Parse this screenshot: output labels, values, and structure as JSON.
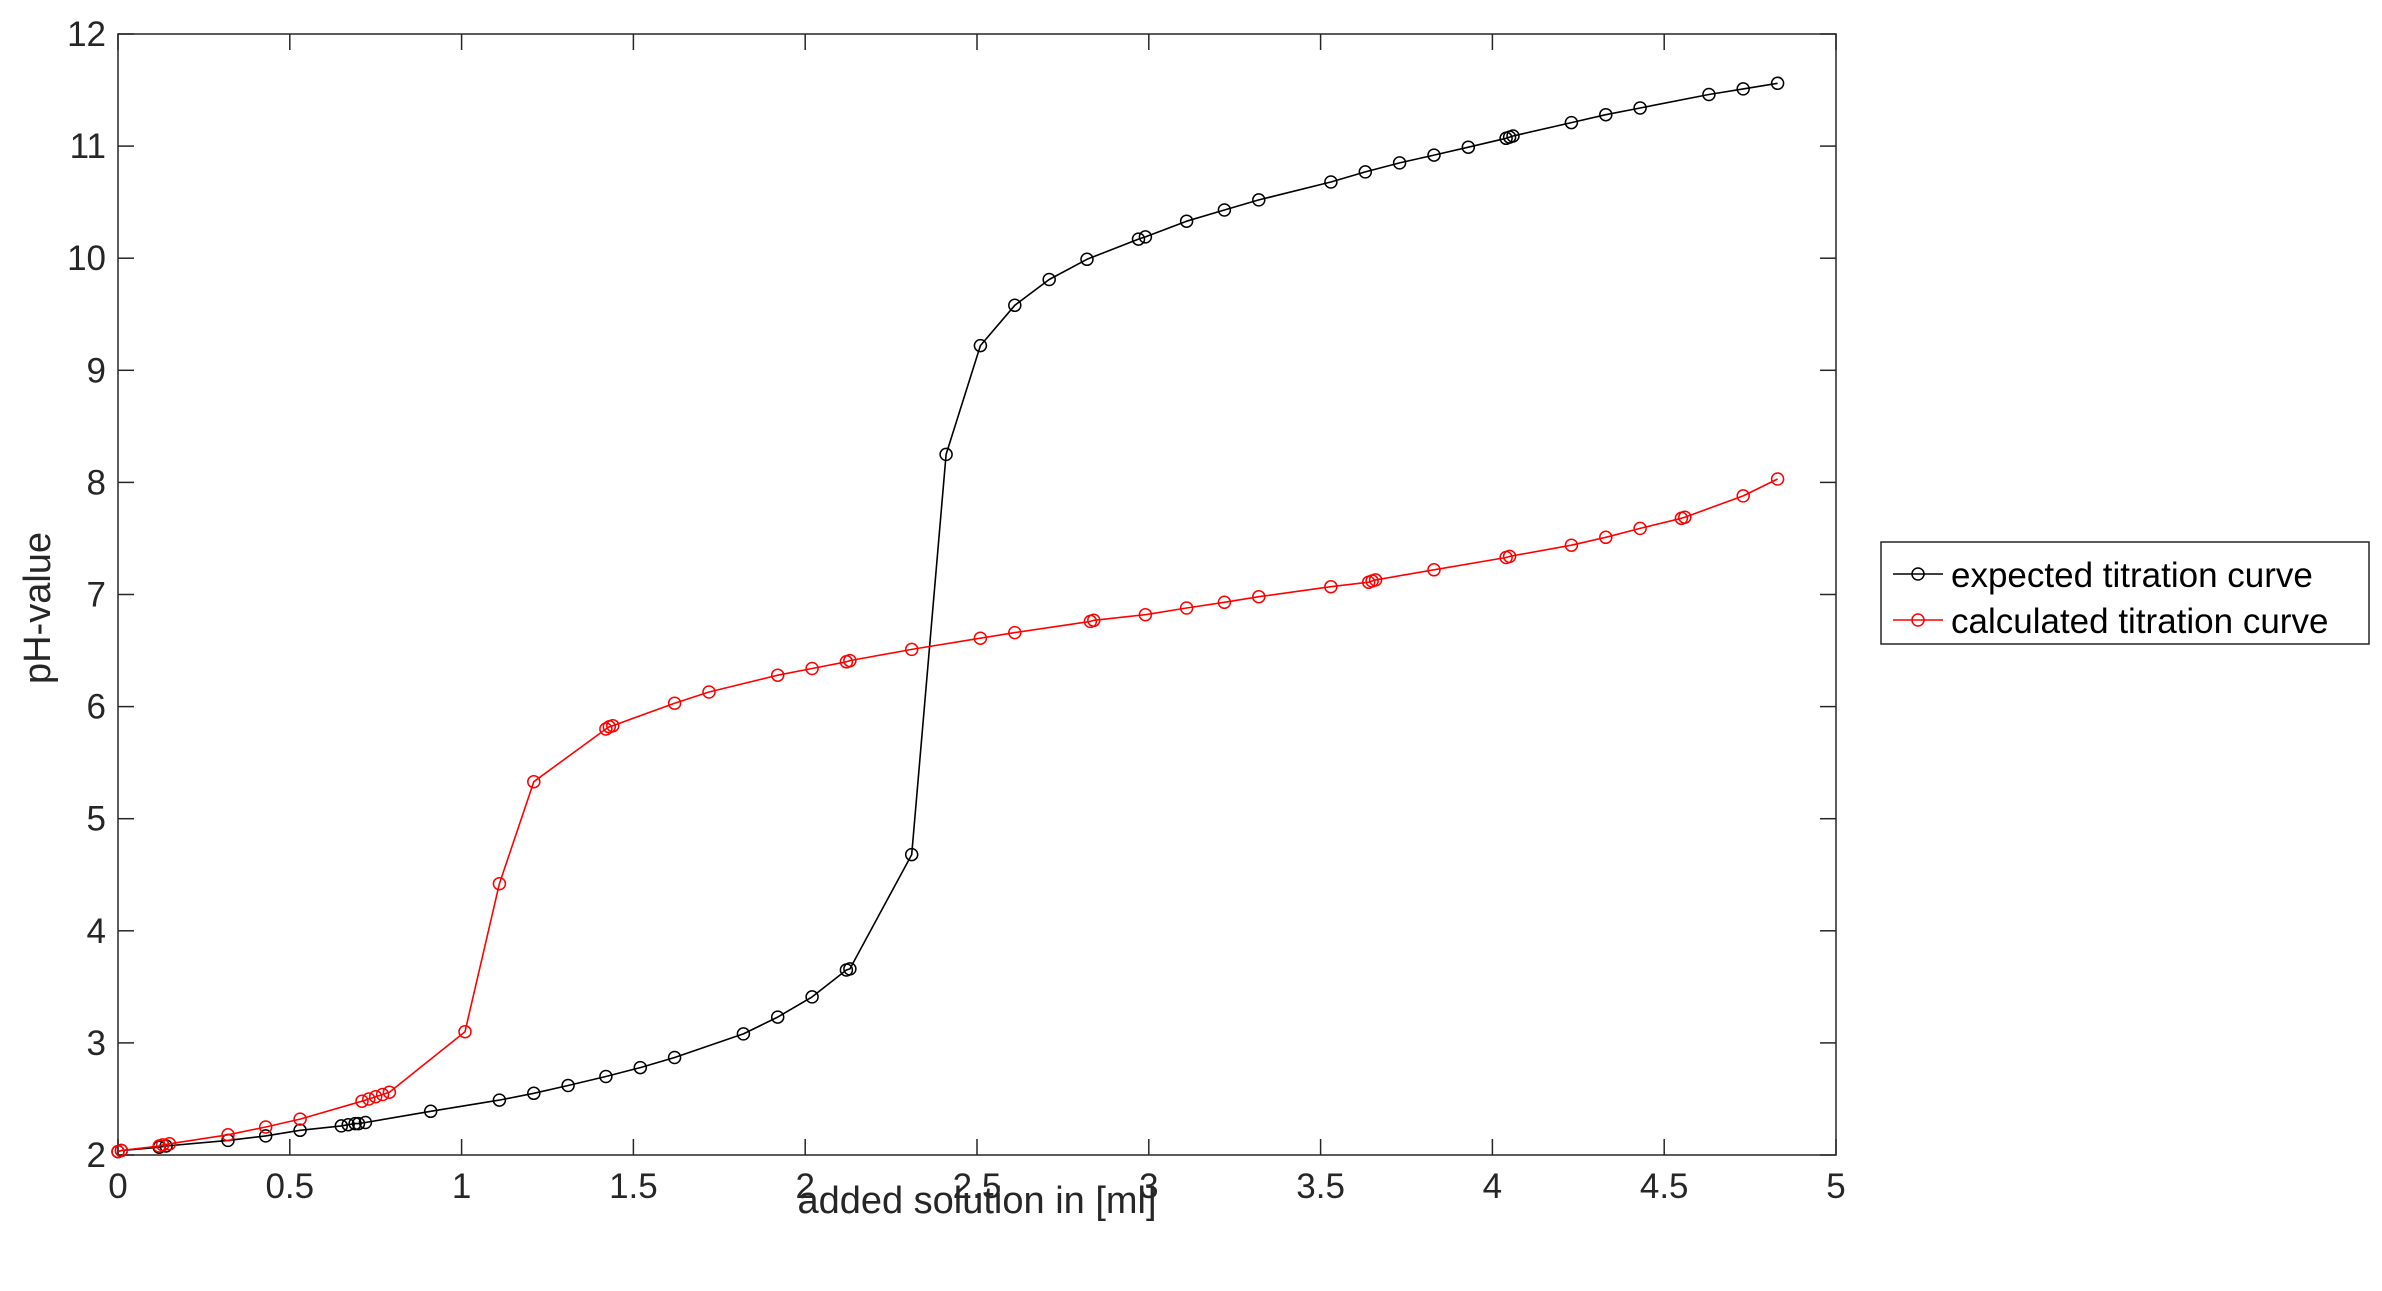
{
  "chart_data": {
    "type": "line",
    "title": "",
    "xlabel": "added solution in [ml]",
    "ylabel": "pH-value",
    "xlim": [
      0,
      5
    ],
    "ylim": [
      2,
      12
    ],
    "xticks": [
      0,
      0.5,
      1,
      1.5,
      2,
      2.5,
      3,
      3.5,
      4,
      4.5,
      5
    ],
    "xtick_labels": [
      "0",
      "0.5",
      "1",
      "1.5",
      "2",
      "2.5",
      "3",
      "3.5",
      "4",
      "4.5",
      "5"
    ],
    "yticks": [
      2,
      3,
      4,
      5,
      6,
      7,
      8,
      9,
      10,
      11,
      12
    ],
    "ytick_labels": [
      "2",
      "3",
      "4",
      "5",
      "6",
      "7",
      "8",
      "9",
      "10",
      "11",
      "12"
    ],
    "grid": false,
    "legend_position": "outside-right",
    "series": [
      {
        "name": "expected titration curve",
        "color": "#000000",
        "marker": "circle",
        "x": [
          0.0,
          0.01,
          0.12,
          0.14,
          0.32,
          0.43,
          0.53,
          0.65,
          0.67,
          0.69,
          0.7,
          0.72,
          0.91,
          1.11,
          1.21,
          1.31,
          1.42,
          1.52,
          1.62,
          1.82,
          1.92,
          2.02,
          2.12,
          2.13,
          2.31,
          2.41,
          2.51,
          2.61,
          2.71,
          2.82,
          2.97,
          2.99,
          3.11,
          3.22,
          3.32,
          3.53,
          3.63,
          3.73,
          3.83,
          3.93,
          4.04,
          4.05,
          4.06,
          4.23,
          4.33,
          4.43,
          4.63,
          4.73,
          4.83
        ],
        "y": [
          2.03,
          2.04,
          2.07,
          2.08,
          2.13,
          2.17,
          2.22,
          2.26,
          2.27,
          2.28,
          2.28,
          2.29,
          2.39,
          2.49,
          2.55,
          2.62,
          2.7,
          2.78,
          2.87,
          3.08,
          3.23,
          3.41,
          3.65,
          3.66,
          4.68,
          8.25,
          9.22,
          9.58,
          9.81,
          9.99,
          10.17,
          10.19,
          10.33,
          10.43,
          10.52,
          10.68,
          10.77,
          10.85,
          10.92,
          10.99,
          11.07,
          11.08,
          11.09,
          11.21,
          11.28,
          11.34,
          11.46,
          11.51,
          11.56
        ]
      },
      {
        "name": "calculated titration curve",
        "color": "#ff0000",
        "marker": "circle",
        "x": [
          0.0,
          0.01,
          0.12,
          0.13,
          0.15,
          0.32,
          0.43,
          0.53,
          0.71,
          0.73,
          0.75,
          0.77,
          0.79,
          1.01,
          1.11,
          1.21,
          1.42,
          1.43,
          1.44,
          1.62,
          1.72,
          1.92,
          2.02,
          2.12,
          2.13,
          2.31,
          2.51,
          2.61,
          2.83,
          2.84,
          2.99,
          3.11,
          3.22,
          3.32,
          3.53,
          3.64,
          3.65,
          3.66,
          3.83,
          4.04,
          4.05,
          4.23,
          4.33,
          4.43,
          4.55,
          4.56,
          4.73,
          4.83
        ],
        "y": [
          2.03,
          2.04,
          2.08,
          2.09,
          2.1,
          2.18,
          2.25,
          2.32,
          2.48,
          2.5,
          2.52,
          2.54,
          2.56,
          3.1,
          4.42,
          5.33,
          5.8,
          5.82,
          5.83,
          6.03,
          6.13,
          6.28,
          6.34,
          6.4,
          6.41,
          6.51,
          6.61,
          6.66,
          6.76,
          6.77,
          6.82,
          6.88,
          6.93,
          6.98,
          7.07,
          7.11,
          7.12,
          7.13,
          7.22,
          7.33,
          7.34,
          7.44,
          7.51,
          7.59,
          7.68,
          7.69,
          7.88,
          8.03
        ]
      }
    ]
  }
}
